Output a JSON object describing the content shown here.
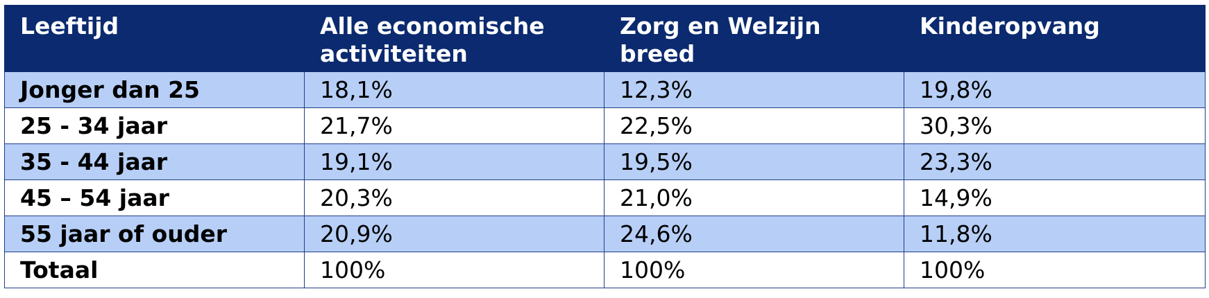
{
  "table": {
    "headers": [
      "Leeftijd",
      "Alle economische activiteiten",
      "Zorg en Welzijn breed",
      "Kinderopvang"
    ],
    "rows": [
      [
        "Jonger dan 25",
        "18,1%",
        "12,3%",
        "19,8%"
      ],
      [
        "25 - 34 jaar",
        "21,7%",
        "22,5%",
        "30,3%"
      ],
      [
        "35 - 44 jaar",
        "19,1%",
        "19,5%",
        "23,3%"
      ],
      [
        "45 – 54 jaar",
        "20,3%",
        "21,0%",
        "14,9%"
      ],
      [
        "55 jaar of ouder",
        "20,9%",
        "24,6%",
        "11,8%"
      ],
      [
        "Totaal",
        "100%",
        "100%",
        "100%"
      ]
    ]
  },
  "colors": {
    "header_bg": "#0b2a6f",
    "header_text": "#ffffff",
    "row_shade": "#b7cff7",
    "row_plain": "#ffffff",
    "border": "#1f3c88"
  }
}
